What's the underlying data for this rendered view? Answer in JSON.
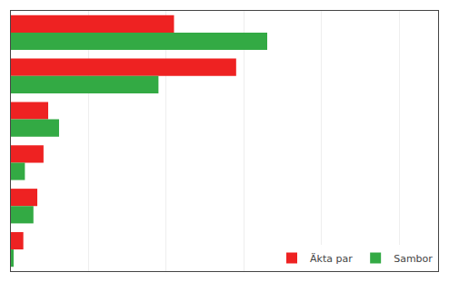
{
  "chart_data": {
    "type": "bar",
    "orientation": "horizontal",
    "categories": [
      null,
      null,
      null,
      null,
      null,
      null
    ],
    "series": [
      {
        "name": "Äkta par",
        "color": "#ee2222",
        "values": [
          21000,
          29000,
          4800,
          4200,
          3400,
          1600
        ]
      },
      {
        "name": "Sambor",
        "color": "#33aa44",
        "values": [
          33000,
          19000,
          6200,
          1800,
          2900,
          350
        ]
      }
    ],
    "xlim": [
      0,
      55000
    ],
    "xticks": [
      0,
      10000,
      20000,
      30000,
      40000,
      50000
    ],
    "grid": true,
    "legend": "lower right",
    "tick_labels": false
  }
}
